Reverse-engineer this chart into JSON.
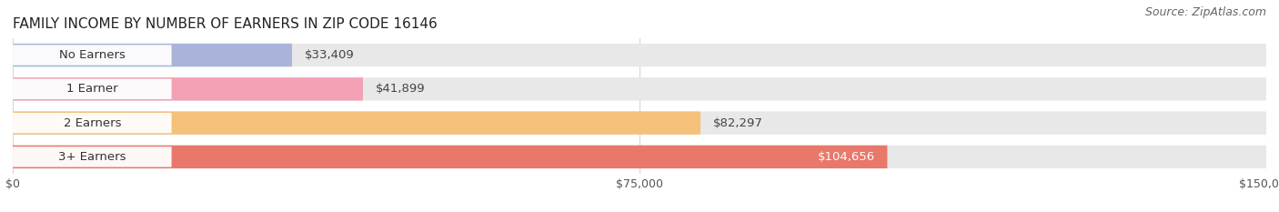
{
  "title": "FAMILY INCOME BY NUMBER OF EARNERS IN ZIP CODE 16146",
  "source": "Source: ZipAtlas.com",
  "categories": [
    "No Earners",
    "1 Earner",
    "2 Earners",
    "3+ Earners"
  ],
  "values": [
    33409,
    41899,
    82297,
    104656
  ],
  "bar_colors": [
    "#aab4d8",
    "#f4a0b5",
    "#f5c07a",
    "#e8786a"
  ],
  "bar_bg_color": "#e8e8e8",
  "value_labels": [
    "$33,409",
    "$41,899",
    "$82,297",
    "$104,656"
  ],
  "value_label_inside": [
    false,
    false,
    false,
    true
  ],
  "xlim": [
    0,
    150000
  ],
  "xticks": [
    0,
    75000,
    150000
  ],
  "xtick_labels": [
    "$0",
    "$75,000",
    "$150,000"
  ],
  "title_fontsize": 11,
  "source_fontsize": 9,
  "label_fontsize": 9.5,
  "tick_fontsize": 9,
  "bar_height": 0.68,
  "background_color": "#ffffff",
  "grid_color": "#d8d8d8",
  "pill_color": "#ffffff",
  "pill_alpha": 0.95,
  "text_color": "#333333",
  "value_inside_color": "#ffffff",
  "value_outside_color": "#444444"
}
